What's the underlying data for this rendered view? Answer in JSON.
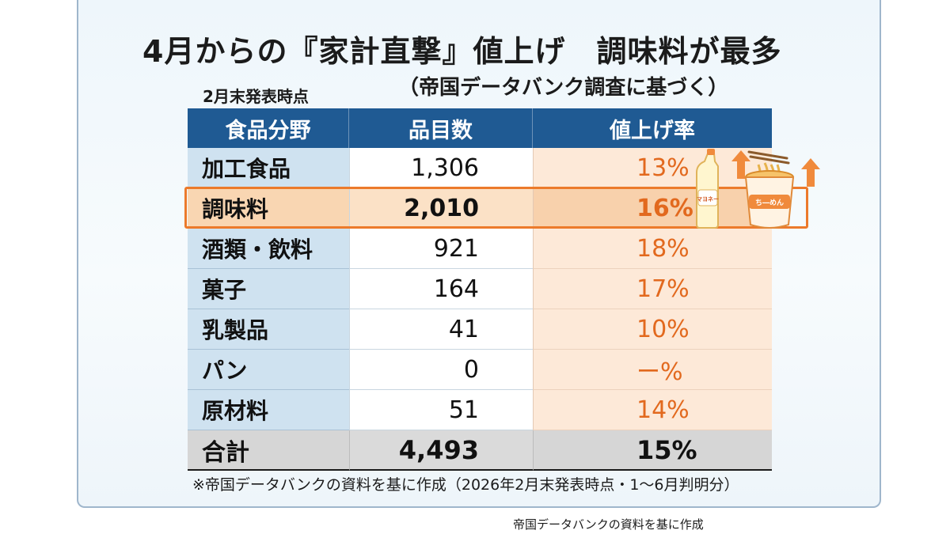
{
  "title": "4月からの『家計直撃』値上げ　調味料が最多",
  "subtitle": "（帝国データバンク調査に基づく）",
  "as_of": "2月末発表時点",
  "table": {
    "headers": [
      "食品分野",
      "品目数",
      "値上げ率"
    ],
    "rows": [
      {
        "category": "加工食品",
        "count": "1,306",
        "rate": "13%"
      },
      {
        "category": "調味料",
        "count": "2,010",
        "rate": "16%"
      },
      {
        "category": "酒類・飲料",
        "count": "921",
        "rate": "18%"
      },
      {
        "category": "菓子",
        "count": "164",
        "rate": "17%"
      },
      {
        "category": "乳製品",
        "count": "41",
        "rate": "10%"
      },
      {
        "category": "パン",
        "count": "0",
        "rate": "ー%"
      },
      {
        "category": "原材料",
        "count": "51",
        "rate": "14%"
      }
    ],
    "total": {
      "category": "合計",
      "count": "4,493",
      "rate": "15%"
    }
  },
  "illustration": {
    "mayo_label": "マヨネー",
    "ramen_label": "ち―めん",
    "icons": [
      "mayonnaise-bottle-icon",
      "cup-noodle-icon",
      "arrow-up-icon"
    ]
  },
  "footnote": "※帝国データバンクの資料を基に作成（2026年2月末発表時点・1～6月判明分）",
  "source": "帝国データバンクの資料を基に作成",
  "colors": {
    "header_bg": "#1f5a93",
    "category_bg": "#cfe2f0",
    "rate_bg": "#fde9d8",
    "rate_text": "#e2691e",
    "highlight_border": "#ec7a2b",
    "total_bg": "#d6d6d6"
  }
}
